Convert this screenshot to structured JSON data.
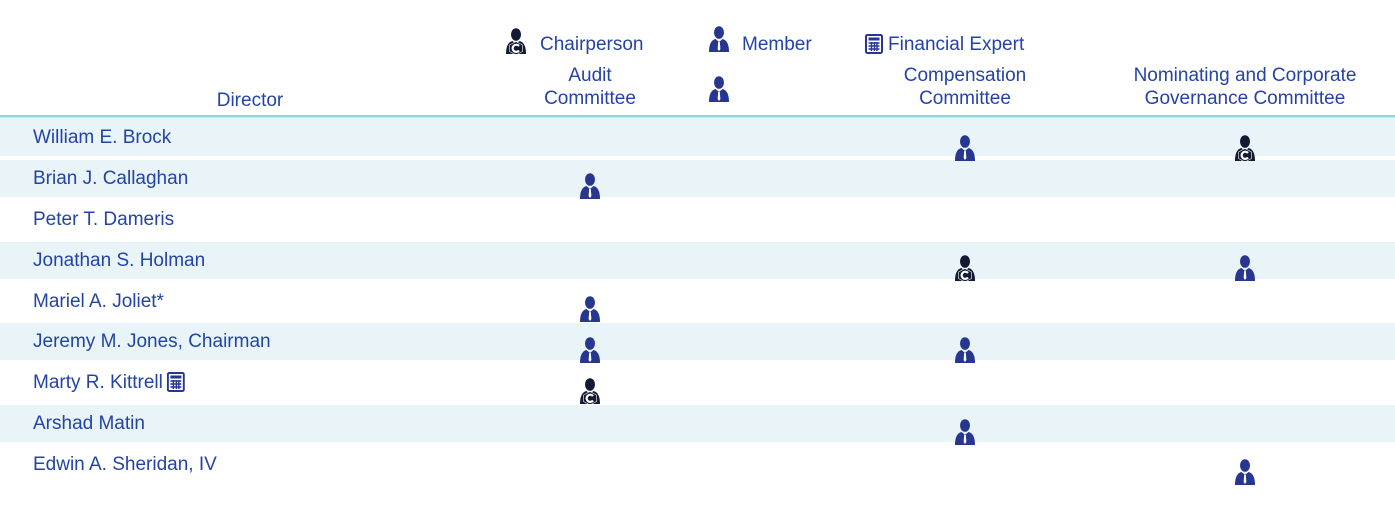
{
  "legend": {
    "chairperson": "Chairperson",
    "member": "Member",
    "financial_expert": "Financial Expert"
  },
  "table": {
    "headers": [
      [
        "Director"
      ],
      [
        "Audit",
        "Committee"
      ],
      [
        "Compensation",
        "Committee"
      ],
      [
        "Nominating and Corporate",
        "Governance Committee"
      ]
    ],
    "rows": [
      "William E. Brock",
      "Brian J. Callaghan",
      "Peter T. Dameris",
      "Jonathan S. Holman",
      "Mariel A. Joliet*",
      "Jeremy M. Jones, Chairman",
      "Marty R. Kittrell",
      "Arshad Matin",
      "Edwin A. Sheridan, IV"
    ]
  }
}
